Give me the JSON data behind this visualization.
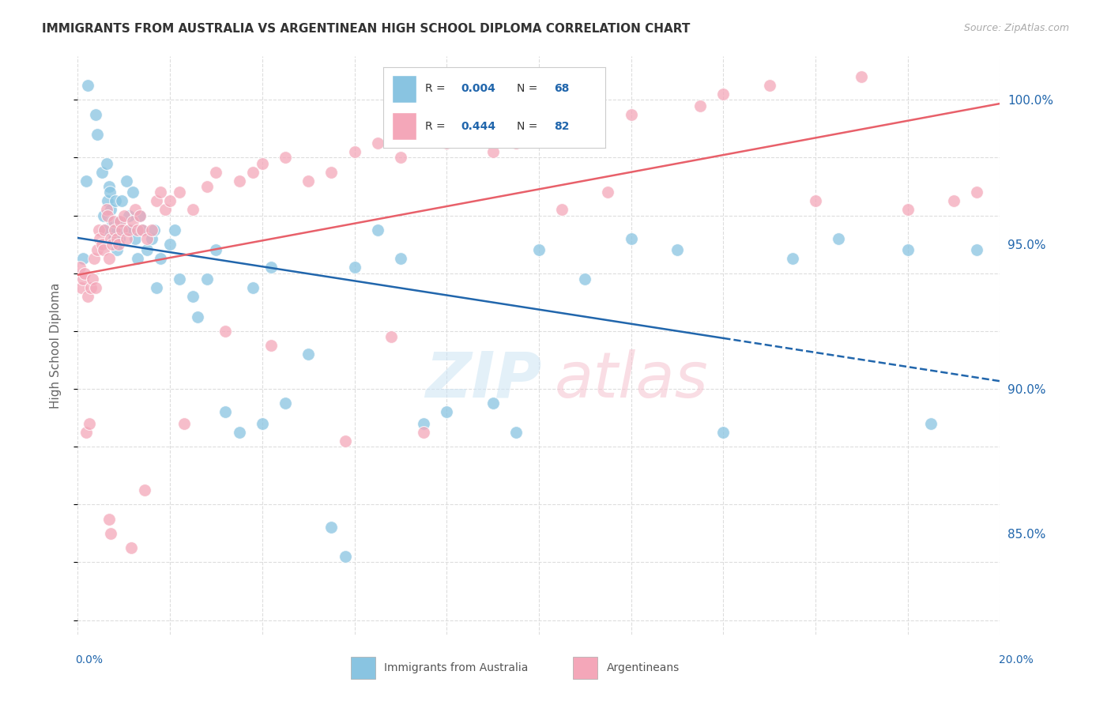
{
  "title": "IMMIGRANTS FROM AUSTRALIA VS ARGENTINEAN HIGH SCHOOL DIPLOMA CORRELATION CHART",
  "source": "Source: ZipAtlas.com",
  "ylabel": "High School Diploma",
  "right_yticks": [
    85.0,
    90.0,
    95.0,
    100.0
  ],
  "right_ytick_labels": [
    "85.0%",
    "90.0%",
    "95.0%",
    "100.0%"
  ],
  "xmin": 0.0,
  "xmax": 20.0,
  "ymin": 81.5,
  "ymax": 101.5,
  "legend_label_blue": "Immigrants from Australia",
  "legend_label_pink": "Argentineans",
  "color_blue": "#89c4e1",
  "color_pink": "#f4a7b9",
  "color_trend_blue": "#2166ac",
  "color_trend_pink": "#e8606a",
  "color_axis_label": "#2166ac",
  "color_right_axis": "#2166ac",
  "background_color": "#ffffff",
  "grid_color": "#dddddd",
  "blue_x": [
    0.12,
    0.18,
    0.22,
    0.38,
    0.42,
    0.52,
    0.55,
    0.58,
    0.62,
    0.65,
    0.68,
    0.7,
    0.72,
    0.75,
    0.78,
    0.8,
    0.82,
    0.85,
    0.88,
    0.9,
    0.95,
    1.0,
    1.05,
    1.1,
    1.15,
    1.2,
    1.25,
    1.3,
    1.35,
    1.4,
    1.5,
    1.6,
    1.65,
    1.7,
    1.8,
    2.0,
    2.1,
    2.2,
    2.5,
    2.6,
    2.8,
    3.0,
    3.2,
    3.5,
    3.8,
    4.0,
    4.2,
    4.5,
    5.0,
    5.5,
    5.8,
    6.0,
    6.5,
    7.0,
    7.5,
    8.0,
    9.0,
    9.5,
    10.0,
    11.0,
    12.0,
    13.0,
    14.0,
    15.5,
    16.5,
    18.0,
    18.5,
    19.5
  ],
  "blue_y": [
    94.5,
    97.2,
    100.5,
    99.5,
    98.8,
    97.5,
    96.0,
    95.5,
    97.8,
    96.5,
    97.0,
    96.8,
    96.2,
    95.8,
    95.2,
    95.5,
    96.5,
    94.8,
    95.8,
    95.2,
    96.5,
    95.5,
    97.2,
    96.0,
    95.5,
    96.8,
    95.2,
    94.5,
    96.0,
    95.5,
    94.8,
    95.2,
    95.5,
    93.5,
    94.5,
    95.0,
    95.5,
    93.8,
    93.2,
    92.5,
    93.8,
    94.8,
    89.2,
    88.5,
    93.5,
    88.8,
    94.2,
    89.5,
    91.2,
    85.2,
    84.2,
    94.2,
    95.5,
    94.5,
    88.8,
    89.2,
    89.5,
    88.5,
    94.8,
    93.8,
    95.2,
    94.8,
    88.5,
    94.5,
    95.2,
    94.8,
    88.8,
    94.8
  ],
  "pink_x": [
    0.05,
    0.08,
    0.12,
    0.15,
    0.18,
    0.22,
    0.25,
    0.28,
    0.32,
    0.35,
    0.38,
    0.42,
    0.45,
    0.48,
    0.52,
    0.55,
    0.58,
    0.62,
    0.65,
    0.68,
    0.72,
    0.75,
    0.78,
    0.8,
    0.85,
    0.88,
    0.92,
    0.95,
    1.0,
    1.05,
    1.1,
    1.2,
    1.25,
    1.3,
    1.35,
    1.4,
    1.5,
    1.6,
    1.7,
    1.8,
    1.9,
    2.0,
    2.2,
    2.5,
    2.8,
    3.0,
    3.5,
    3.8,
    4.0,
    4.5,
    5.0,
    5.5,
    6.0,
    6.5,
    7.0,
    8.0,
    8.5,
    9.0,
    9.5,
    10.0,
    11.0,
    12.0,
    13.5,
    14.0,
    15.0,
    16.0,
    17.0,
    18.0,
    19.0,
    19.5,
    10.5,
    11.5,
    6.8,
    7.5,
    3.2,
    2.3,
    4.2,
    5.8,
    1.45,
    0.68,
    0.72,
    1.15
  ],
  "pink_y": [
    94.2,
    93.5,
    93.8,
    94.0,
    88.5,
    93.2,
    88.8,
    93.5,
    93.8,
    94.5,
    93.5,
    94.8,
    95.5,
    95.2,
    95.0,
    94.8,
    95.5,
    96.2,
    96.0,
    94.5,
    95.2,
    95.0,
    95.8,
    95.5,
    95.2,
    95.0,
    95.8,
    95.5,
    96.0,
    95.2,
    95.5,
    95.8,
    96.2,
    95.5,
    96.0,
    95.5,
    95.2,
    95.5,
    96.5,
    96.8,
    96.2,
    96.5,
    96.8,
    96.2,
    97.0,
    97.5,
    97.2,
    97.5,
    97.8,
    98.0,
    97.2,
    97.5,
    98.2,
    98.5,
    98.0,
    98.5,
    98.8,
    98.2,
    98.5,
    99.0,
    99.2,
    99.5,
    99.8,
    100.2,
    100.5,
    96.5,
    100.8,
    96.2,
    96.5,
    96.8,
    96.2,
    96.8,
    91.8,
    88.5,
    92.0,
    88.8,
    91.5,
    88.2,
    86.5,
    85.5,
    85.0,
    84.5
  ]
}
